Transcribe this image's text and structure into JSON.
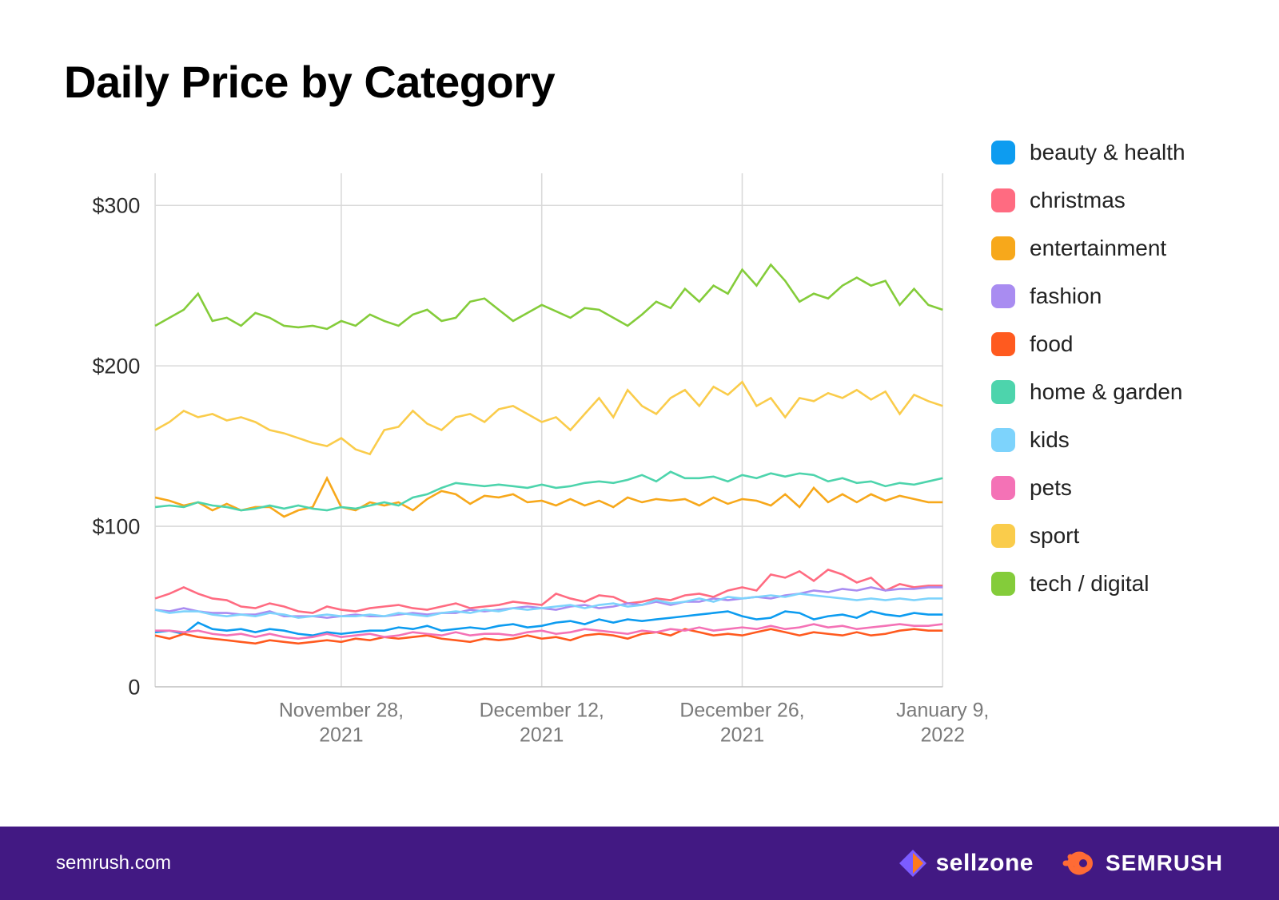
{
  "title": "Daily Price by Category",
  "chart": {
    "type": "line",
    "background_color": "#ffffff",
    "grid_color": "#d9d9d9",
    "line_width": 2.5,
    "title_fontsize": 56,
    "y_axis": {
      "min": 0,
      "max": 320,
      "ticks": [
        0,
        100,
        200,
        300
      ],
      "tick_labels": [
        "0",
        "$100",
        "$200",
        "$300"
      ],
      "label_fontsize": 26,
      "label_color": "#2d2d2d"
    },
    "x_axis": {
      "n_points": 56,
      "grid_positions": [
        14,
        28,
        42,
        56
      ],
      "tick_positions": [
        14,
        28,
        42,
        56
      ],
      "tick_labels": [
        "November 28,\n2021",
        "December 12,\n2021",
        "December 26,\n2021",
        "January 9,\n2022"
      ],
      "label_fontsize": 24,
      "label_color": "#7a7a7a"
    },
    "series": [
      {
        "name": "beauty & health",
        "color": "#0d9cf0",
        "values": [
          34,
          35,
          33,
          40,
          36,
          35,
          36,
          34,
          36,
          35,
          33,
          32,
          34,
          33,
          34,
          35,
          35,
          37,
          36,
          38,
          35,
          36,
          37,
          36,
          38,
          39,
          37,
          38,
          40,
          41,
          39,
          42,
          40,
          42,
          41,
          42,
          43,
          44,
          45,
          46,
          47,
          44,
          42,
          43,
          47,
          46,
          42,
          44,
          45,
          43,
          47,
          45,
          44,
          46,
          45,
          45
        ]
      },
      {
        "name": "christmas",
        "color": "#ff6b81",
        "values": [
          55,
          58,
          62,
          58,
          55,
          54,
          50,
          49,
          52,
          50,
          47,
          46,
          50,
          48,
          47,
          49,
          50,
          51,
          49,
          48,
          50,
          52,
          49,
          50,
          51,
          53,
          52,
          51,
          58,
          55,
          53,
          57,
          56,
          52,
          53,
          55,
          54,
          57,
          58,
          56,
          60,
          62,
          60,
          70,
          68,
          72,
          66,
          73,
          70,
          65,
          68,
          60,
          64,
          62,
          63,
          63
        ]
      },
      {
        "name": "entertainment",
        "color": "#f7a81b",
        "values": [
          118,
          116,
          113,
          115,
          110,
          114,
          110,
          112,
          112,
          106,
          110,
          112,
          130,
          112,
          110,
          115,
          113,
          115,
          110,
          117,
          122,
          120,
          114,
          119,
          118,
          120,
          115,
          116,
          113,
          117,
          113,
          116,
          112,
          118,
          115,
          117,
          116,
          117,
          113,
          118,
          114,
          117,
          116,
          113,
          120,
          112,
          124,
          115,
          120,
          115,
          120,
          116,
          119,
          117,
          115,
          115
        ]
      },
      {
        "name": "fashion",
        "color": "#a98cf1",
        "values": [
          48,
          47,
          49,
          47,
          46,
          46,
          45,
          45,
          47,
          44,
          44,
          44,
          43,
          44,
          45,
          44,
          44,
          45,
          46,
          45,
          46,
          46,
          48,
          47,
          48,
          49,
          50,
          49,
          48,
          50,
          51,
          49,
          50,
          52,
          51,
          53,
          51,
          53,
          53,
          55,
          54,
          55,
          56,
          55,
          57,
          58,
          60,
          59,
          61,
          60,
          62,
          60,
          61,
          61,
          62,
          62
        ]
      },
      {
        "name": "food",
        "color": "#ff5a1f",
        "values": [
          32,
          30,
          33,
          31,
          30,
          29,
          28,
          27,
          29,
          28,
          27,
          28,
          29,
          28,
          30,
          29,
          31,
          30,
          31,
          32,
          30,
          29,
          28,
          30,
          29,
          30,
          32,
          30,
          31,
          29,
          32,
          33,
          32,
          30,
          33,
          34,
          32,
          36,
          34,
          32,
          33,
          32,
          34,
          36,
          34,
          32,
          34,
          33,
          32,
          34,
          32,
          33,
          35,
          36,
          35,
          35
        ]
      },
      {
        "name": "home & garden",
        "color": "#4dd4ac",
        "values": [
          112,
          113,
          112,
          115,
          113,
          112,
          110,
          111,
          113,
          111,
          113,
          111,
          110,
          112,
          111,
          113,
          115,
          113,
          118,
          120,
          124,
          127,
          126,
          125,
          126,
          125,
          124,
          126,
          124,
          125,
          127,
          128,
          127,
          129,
          132,
          128,
          134,
          130,
          130,
          131,
          128,
          132,
          130,
          133,
          131,
          133,
          132,
          128,
          130,
          127,
          128,
          125,
          127,
          126,
          128,
          130
        ]
      },
      {
        "name": "kids",
        "color": "#7dd3fc",
        "values": [
          48,
          46,
          47,
          47,
          45,
          44,
          45,
          44,
          46,
          45,
          43,
          44,
          45,
          44,
          44,
          45,
          44,
          46,
          45,
          44,
          46,
          47,
          46,
          48,
          47,
          49,
          48,
          49,
          50,
          51,
          49,
          51,
          52,
          50,
          51,
          54,
          52,
          53,
          55,
          53,
          56,
          55,
          56,
          57,
          56,
          58,
          57,
          56,
          55,
          54,
          55,
          54,
          55,
          54,
          55,
          55
        ]
      },
      {
        "name": "pets",
        "color": "#f472b6",
        "values": [
          35,
          35,
          34,
          35,
          33,
          32,
          33,
          31,
          33,
          31,
          30,
          31,
          33,
          31,
          32,
          33,
          31,
          32,
          34,
          33,
          32,
          34,
          32,
          33,
          33,
          32,
          34,
          35,
          33,
          34,
          36,
          35,
          34,
          33,
          35,
          34,
          36,
          35,
          37,
          35,
          36,
          37,
          36,
          38,
          36,
          37,
          39,
          37,
          38,
          36,
          37,
          38,
          39,
          38,
          38,
          39
        ]
      },
      {
        "name": "sport",
        "color": "#facc4b",
        "values": [
          160,
          165,
          172,
          168,
          170,
          166,
          168,
          165,
          160,
          158,
          155,
          152,
          150,
          155,
          148,
          145,
          160,
          162,
          172,
          164,
          160,
          168,
          170,
          165,
          173,
          175,
          170,
          165,
          168,
          160,
          170,
          180,
          168,
          185,
          175,
          170,
          180,
          185,
          175,
          187,
          182,
          190,
          175,
          180,
          168,
          180,
          178,
          183,
          180,
          185,
          179,
          184,
          170,
          182,
          178,
          175
        ]
      },
      {
        "name": "tech / digital",
        "color": "#84cc3a",
        "values": [
          225,
          230,
          235,
          245,
          228,
          230,
          225,
          233,
          230,
          225,
          224,
          225,
          223,
          228,
          225,
          232,
          228,
          225,
          232,
          235,
          228,
          230,
          240,
          242,
          235,
          228,
          233,
          238,
          234,
          230,
          236,
          235,
          230,
          225,
          232,
          240,
          236,
          248,
          240,
          250,
          245,
          260,
          250,
          263,
          253,
          240,
          245,
          242,
          250,
          255,
          250,
          253,
          238,
          248,
          238,
          235
        ]
      }
    ]
  },
  "legend": {
    "swatch_radius": 8,
    "label_fontsize": 28,
    "items": [
      {
        "name": "beauty & health",
        "color": "#0d9cf0"
      },
      {
        "name": "christmas",
        "color": "#ff6b81"
      },
      {
        "name": "entertainment",
        "color": "#f7a81b"
      },
      {
        "name": "fashion",
        "color": "#a98cf1"
      },
      {
        "name": "food",
        "color": "#ff5a1f"
      },
      {
        "name": "home & garden",
        "color": "#4dd4ac"
      },
      {
        "name": "kids",
        "color": "#7dd3fc"
      },
      {
        "name": "pets",
        "color": "#f472b6"
      },
      {
        "name": "sport",
        "color": "#facc4b"
      },
      {
        "name": "tech / digital",
        "color": "#84cc3a"
      }
    ]
  },
  "footer": {
    "background_color": "#421983",
    "url": "semrush.com",
    "brands": {
      "sellzone": {
        "text": "sellzone",
        "accent": "#ff7a1a"
      },
      "semrush": {
        "text": "SEMRUSH",
        "accent": "#ff6b35"
      }
    }
  }
}
